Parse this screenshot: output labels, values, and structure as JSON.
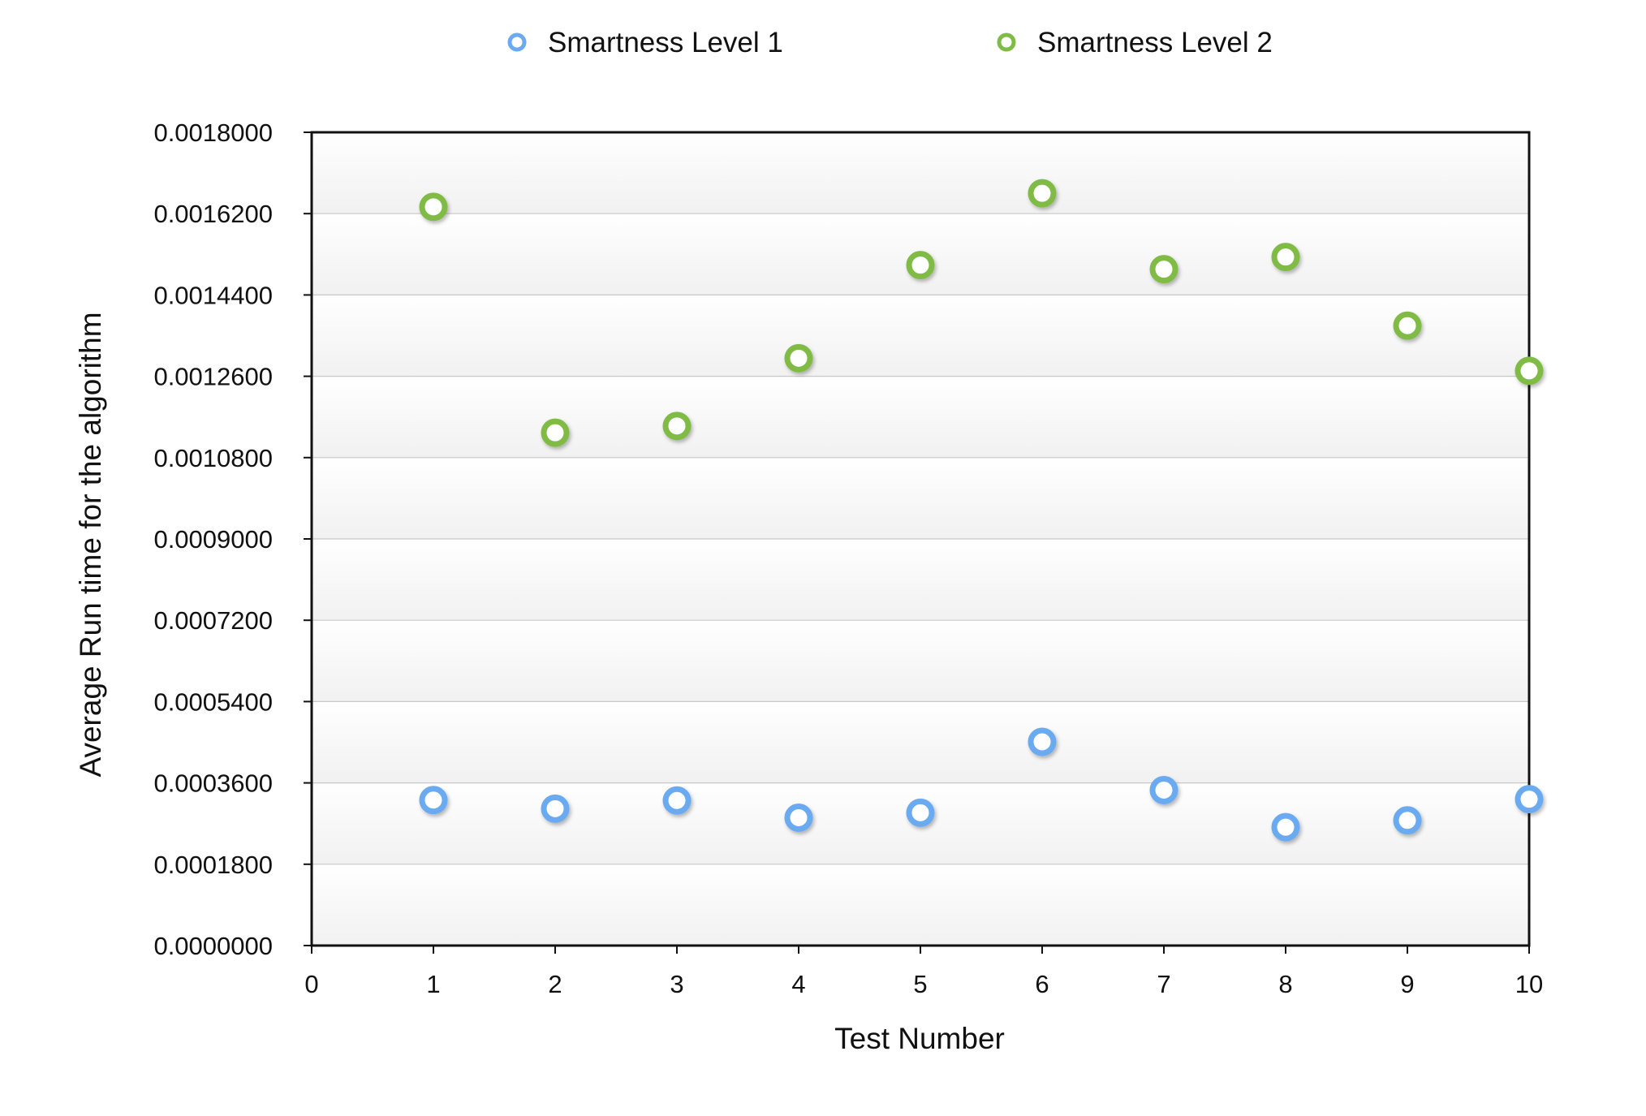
{
  "chart_data": {
    "type": "scatter",
    "title": "",
    "xlabel": "Test Number",
    "ylabel": "Average Run time for the algorithm",
    "xlim": [
      0,
      10
    ],
    "ylim": [
      0,
      0.0018
    ],
    "x_ticks": [
      "0",
      "1",
      "2",
      "3",
      "4",
      "5",
      "6",
      "7",
      "8",
      "9",
      "10"
    ],
    "y_ticks": [
      "0.0000000",
      "0.0001800",
      "0.0003600",
      "0.0005400",
      "0.0007200",
      "0.0009000",
      "0.0010800",
      "0.0012600",
      "0.0014400",
      "0.0016200",
      "0.0018000"
    ],
    "grid": "horizontal",
    "legend_position": "top-center",
    "x": [
      1,
      2,
      3,
      4,
      5,
      6,
      7,
      8,
      9,
      10
    ],
    "series": [
      {
        "name": "Smartness Level 1",
        "color": "#6aaaf0",
        "values": [
          0.000322,
          0.000303,
          0.000321,
          0.000283,
          0.000294,
          0.000451,
          0.000344,
          0.000262,
          0.000277,
          0.000324
        ]
      },
      {
        "name": "Smartness Level 2",
        "color": "#7fbb45",
        "values": [
          0.001635,
          0.001135,
          0.00115,
          0.0013,
          0.001506,
          0.001665,
          0.001497,
          0.001524,
          0.001372,
          0.001272
        ]
      }
    ]
  }
}
